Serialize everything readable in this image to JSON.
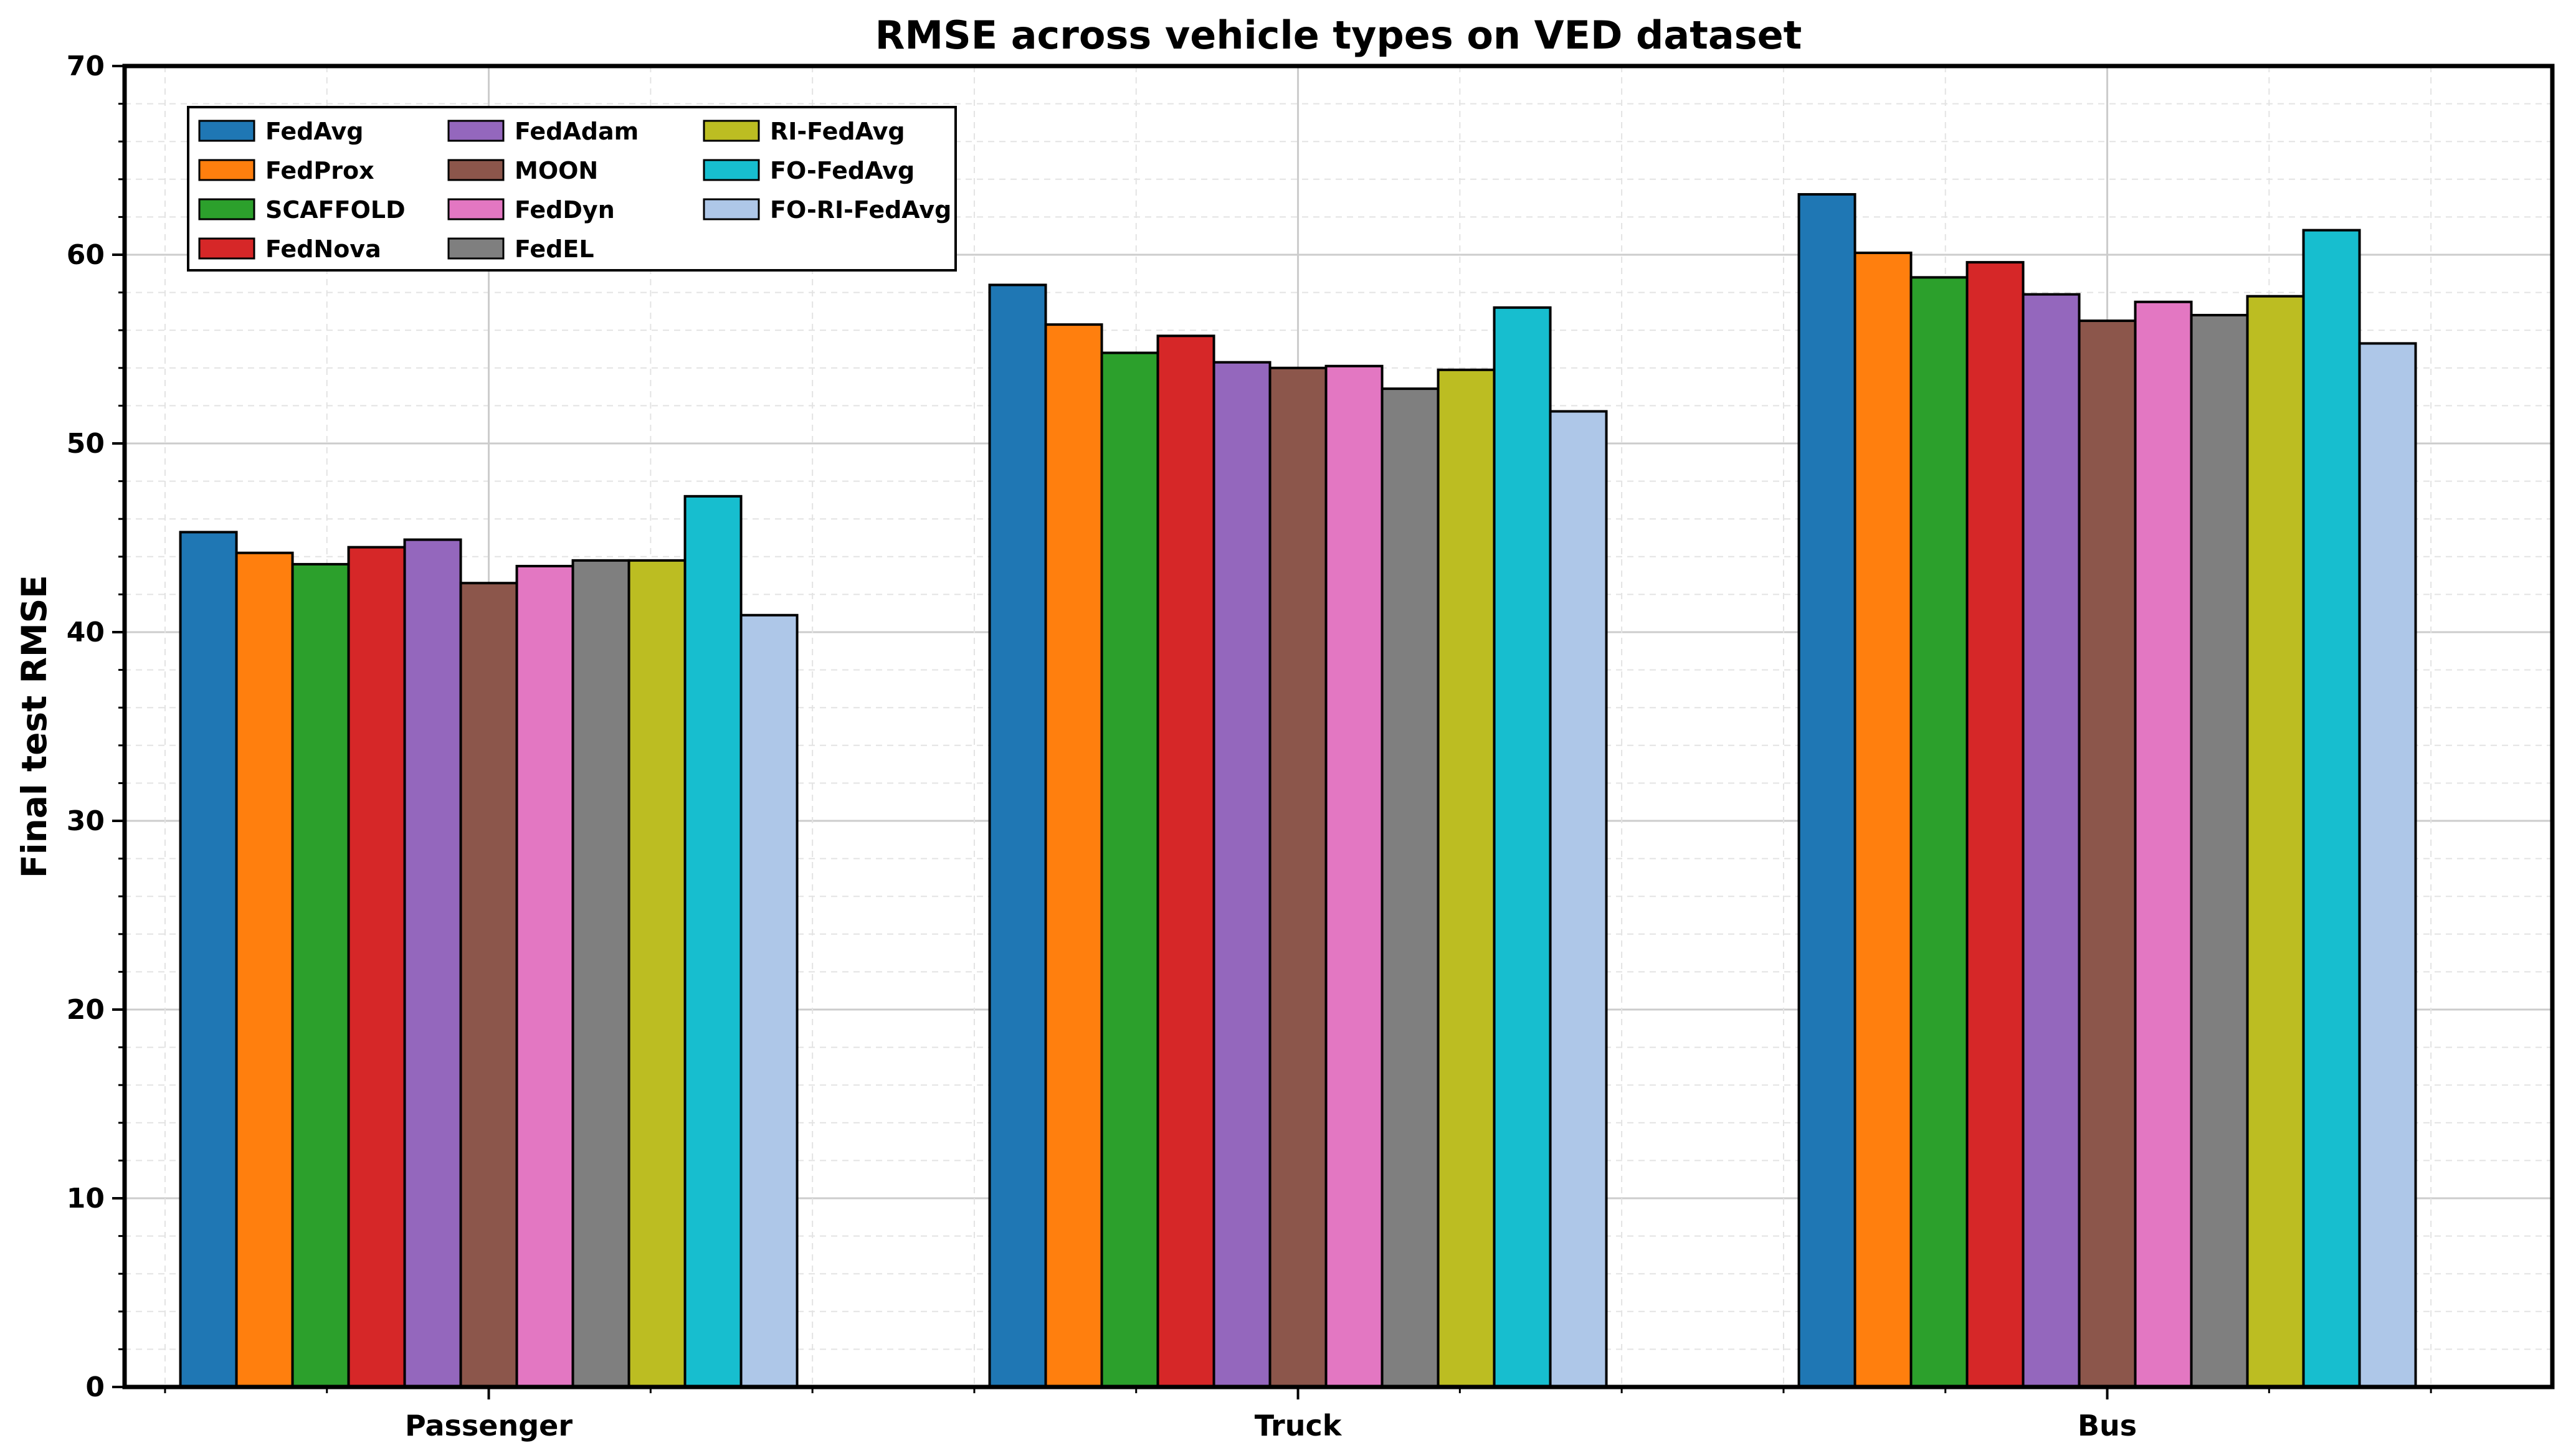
{
  "chart_data": {
    "type": "bar",
    "title": "RMSE across vehicle types on VED dataset",
    "xlabel": "",
    "ylabel": "Final test RMSE",
    "ylim": [
      0,
      70
    ],
    "yticks": [
      0,
      10,
      20,
      30,
      40,
      50,
      60,
      70
    ],
    "grid": true,
    "legend_position": "top-left",
    "legend_columns": 3,
    "categories": [
      "Passenger",
      "Truck",
      "Bus"
    ],
    "series": [
      {
        "name": "FedAvg",
        "color": "#1f77b4",
        "values": [
          45.3,
          58.4,
          63.2
        ]
      },
      {
        "name": "FedProx",
        "color": "#ff7f0e",
        "values": [
          44.2,
          56.3,
          60.1
        ]
      },
      {
        "name": "SCAFFOLD",
        "color": "#2ca02c",
        "values": [
          43.6,
          54.8,
          58.8
        ]
      },
      {
        "name": "FedNova",
        "color": "#d62728",
        "values": [
          44.5,
          55.7,
          59.6
        ]
      },
      {
        "name": "FedAdam",
        "color": "#9467bd",
        "values": [
          44.9,
          54.3,
          57.9
        ]
      },
      {
        "name": "MOON",
        "color": "#8c564b",
        "values": [
          42.6,
          54.0,
          56.5
        ]
      },
      {
        "name": "FedDyn",
        "color": "#e377c2",
        "values": [
          43.5,
          54.1,
          57.5
        ]
      },
      {
        "name": "FedEL",
        "color": "#7f7f7f",
        "values": [
          43.8,
          52.9,
          56.8
        ]
      },
      {
        "name": "RI-FedAvg",
        "color": "#bcbd22",
        "values": [
          43.8,
          53.9,
          57.8
        ]
      },
      {
        "name": "FO-FedAvg",
        "color": "#17becf",
        "values": [
          47.2,
          57.2,
          61.3
        ]
      },
      {
        "name": "FO-RI-FedAvg",
        "color": "#aec7e8",
        "values": [
          40.9,
          51.7,
          55.3
        ]
      }
    ]
  }
}
